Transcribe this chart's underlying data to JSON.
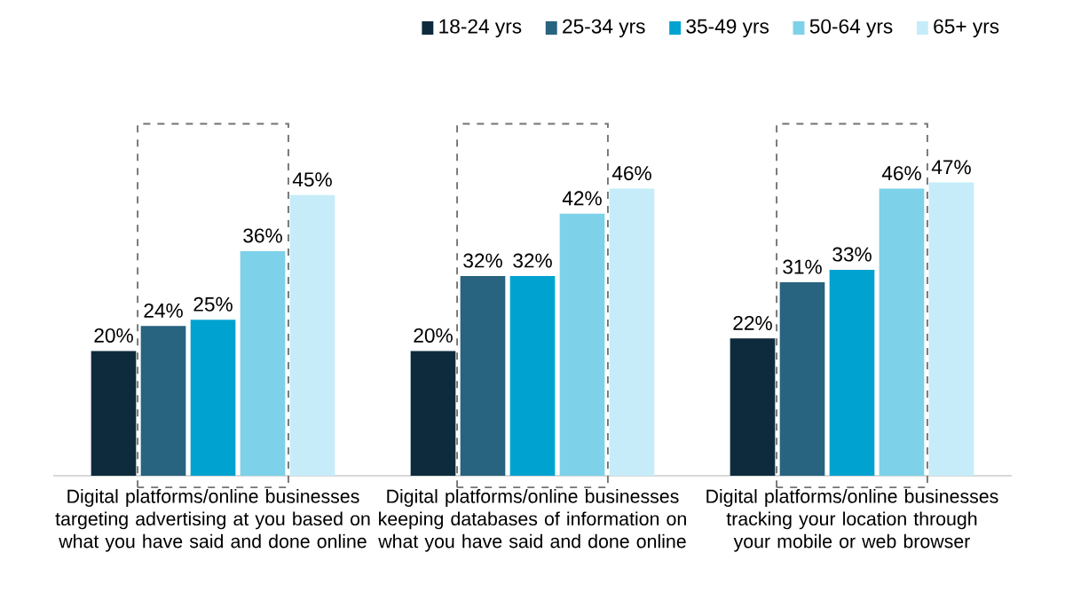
{
  "chart_data": {
    "type": "bar",
    "categories": [
      "Digital platforms/online businesses targeting advertising at you based on what you have said and done online",
      "Digital platforms/online businesses keeping databases of information on what you have said and done online",
      "Digital platforms/online businesses tracking your location through your mobile or web browser"
    ],
    "series": [
      {
        "name": "18-24 yrs",
        "color": "#0d2b3c",
        "values": [
          20,
          20,
          22
        ],
        "value_labels": [
          "20%",
          "20%",
          "22%"
        ]
      },
      {
        "name": "25-34 yrs",
        "color": "#28637f",
        "values": [
          24,
          32,
          31
        ],
        "value_labels": [
          "24%",
          "32%",
          "31%"
        ]
      },
      {
        "name": "35-49 yrs",
        "color": "#00a3cf",
        "values": [
          25,
          32,
          33
        ],
        "value_labels": [
          "25%",
          "32%",
          "33%"
        ]
      },
      {
        "name": "50-64 yrs",
        "color": "#7dd1e8",
        "values": [
          36,
          42,
          46
        ],
        "value_labels": [
          "36%",
          "42%",
          "46%"
        ]
      },
      {
        "name": "65+ yrs",
        "color": "#c6ecf9",
        "values": [
          45,
          46,
          47
        ],
        "value_labels": [
          "45%",
          "46%",
          "47%"
        ]
      }
    ],
    "legend": "top right"
  }
}
